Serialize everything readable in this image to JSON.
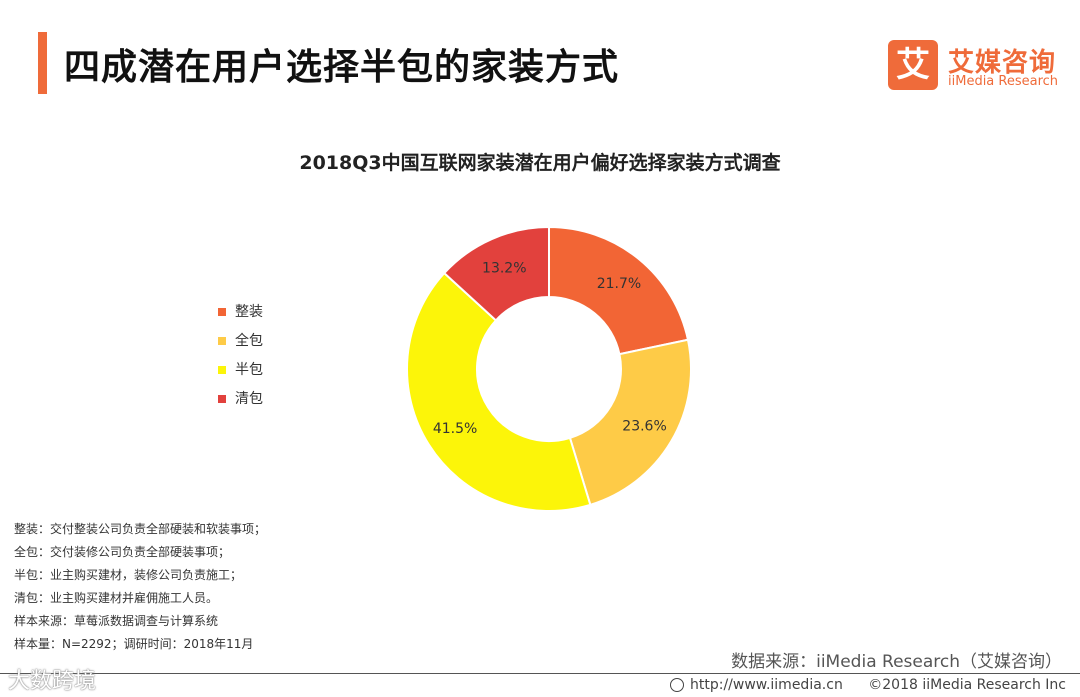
{
  "header": {
    "title": "四成潜在用户选择半包的家装方式",
    "logo_mark": "艾",
    "logo_cn": "艾媒咨询",
    "logo_en": "iiMedia Research"
  },
  "chart_data": {
    "type": "pie",
    "donut": true,
    "title": "2018Q3中国互联网家装潜在用户偏好选择家装方式调查",
    "legend_position": "left",
    "categories": [
      "整装",
      "全包",
      "半包",
      "清包"
    ],
    "values": [
      21.7,
      23.6,
      41.5,
      13.2
    ],
    "labels": [
      "21.7%",
      "23.6%",
      "41.5%",
      "13.2%"
    ],
    "colors": [
      "#f26535",
      "#fecb47",
      "#fcf509",
      "#e2413d"
    ]
  },
  "notes": [
    "整装：交付整装公司负责全部硬装和软装事项；",
    "全包：交付装修公司负责全部硬装事项；",
    "半包：业主购买建材，装修公司负责施工；",
    "清包：业主购买建材并雇佣施工人员。",
    "样本来源：草莓派数据调查与计算系统",
    "样本量：N=2292；调研时间：2018年11月"
  ],
  "source": "数据来源：iiMedia Research（艾媒咨询）",
  "footer": {
    "url": "http://www.iimedia.cn",
    "copyright": "©2018  iiMedia Research  Inc"
  },
  "watermark": "大数跨境"
}
